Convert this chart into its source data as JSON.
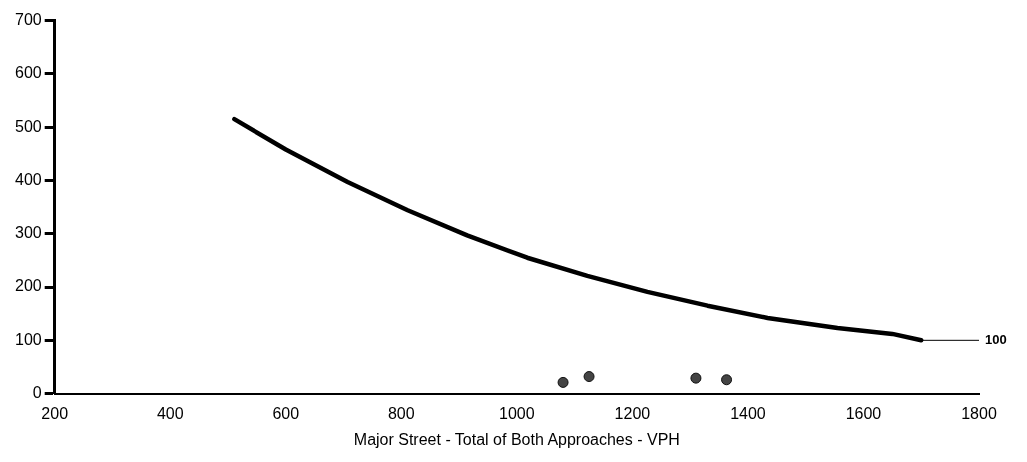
{
  "chart_data": {
    "type": "line",
    "xlabel": "Major Street - Total of Both Approaches - VPH",
    "xlim": [
      200,
      1800
    ],
    "xticks": [
      200,
      400,
      600,
      800,
      1000,
      1200,
      1400,
      1600,
      1800
    ],
    "ylim": [
      0,
      700
    ],
    "yticks": [
      0,
      100,
      200,
      300,
      400,
      500,
      600,
      700
    ],
    "grid": false,
    "legend": false,
    "series": [
      {
        "color": "#000000",
        "marker": "none",
        "line_style": "solid",
        "x": [
          511,
          600,
          707,
          811,
          914,
          1018,
          1122,
          1226,
          1330,
          1434,
          1555,
          1650,
          1700
        ],
        "values": [
          515,
          458,
          397,
          344,
          297,
          255,
          221,
          191,
          165,
          142,
          123,
          112,
          100
        ]
      },
      {
        "color": "#000000",
        "marker": "none",
        "line_style": "solid",
        "x": [
          1700,
          1800
        ],
        "values": [
          100,
          100
        ]
      },
      {
        "type": "scatter",
        "color": "#444444",
        "marker": "circle",
        "x": [
          1080,
          1125,
          1310,
          1363
        ],
        "values": [
          21,
          32,
          29,
          26
        ]
      }
    ],
    "annotations": [
      {
        "text": "100",
        "x": 1800,
        "y": 100
      }
    ]
  }
}
